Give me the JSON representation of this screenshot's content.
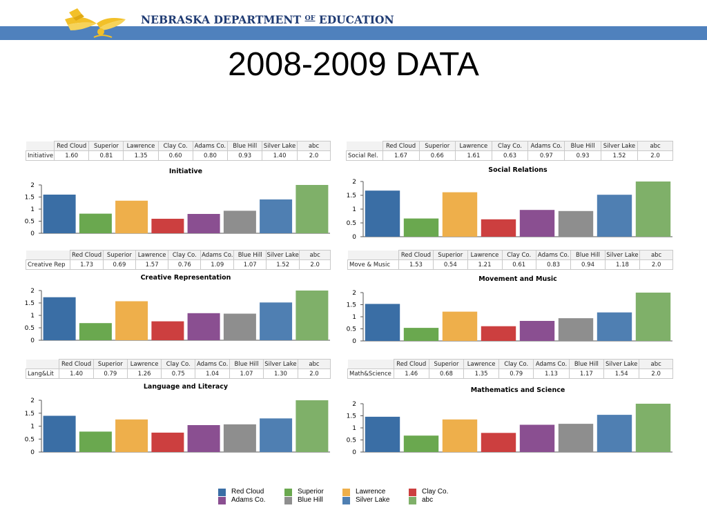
{
  "header": {
    "org_name_part1": "NEBRASKA DEPARTMENT ",
    "org_name_of": "OF",
    "org_name_part2": " EDUCATION",
    "band_color": "#4f81bd",
    "logo_icon": "book-torch-logo"
  },
  "slide_title": "2008-2009 DATA",
  "colors": {
    "Red Cloud": "#3a6ea5",
    "Superior": "#6aa84f",
    "Lawrence": "#eeaf4b",
    "Clay Co.": "#cc3f3f",
    "Adams Co.": "#8a4f91",
    "Blue Hill": "#8e8e8e",
    "Silver Lake": "#4f7fb2",
    "abc": "#7fb069"
  },
  "chart_data": [
    {
      "type": "bar",
      "row_label": "Initiative",
      "title": "Initiative",
      "categories": [
        "Red Cloud",
        "Superior",
        "Lawrence",
        "Clay Co.",
        "Adams Co.",
        "Blue Hill",
        "Silver Lake",
        "abc"
      ],
      "table_values": [
        "1.60",
        "0.81",
        "1.35",
        "0.60",
        "0.80",
        "0.93",
        "1.40",
        "2.0"
      ],
      "values": [
        1.6,
        0.81,
        1.35,
        0.6,
        0.8,
        0.93,
        1.4,
        2.0
      ],
      "yticks": [
        "0",
        "0.5",
        "1",
        "1.5",
        "2"
      ],
      "ylim": [
        0,
        2
      ]
    },
    {
      "type": "bar",
      "row_label": "Social Rel.",
      "title": "Social Relations",
      "categories": [
        "Red Cloud",
        "Superior",
        "Lawrence",
        "Clay Co.",
        "Adams Co.",
        "Blue Hill",
        "Silver Lake",
        "abc"
      ],
      "table_values": [
        "1.67",
        "0.66",
        "1.61",
        "0.63",
        "0.97",
        "0.93",
        "1.52",
        "2.0"
      ],
      "values": [
        1.67,
        0.66,
        1.61,
        0.63,
        0.97,
        0.93,
        1.52,
        2.0
      ],
      "yticks": [
        "0",
        "0.5",
        "1",
        "1.5",
        "2"
      ],
      "ylim": [
        0,
        2
      ]
    },
    {
      "type": "bar",
      "row_label": "Creative Rep",
      "title": "Creative Representation",
      "categories": [
        "Red Cloud",
        "Superior",
        "Lawrence",
        "Clay Co.",
        "Adams Co.",
        "Blue Hill",
        "Silver Lake",
        "abc"
      ],
      "table_values": [
        "1.73",
        "0.69",
        "1.57",
        "0.76",
        "1.09",
        "1.07",
        "1.52",
        "2.0"
      ],
      "values": [
        1.73,
        0.69,
        1.57,
        0.76,
        1.09,
        1.07,
        1.52,
        2.0
      ],
      "yticks": [
        "0",
        "0.5",
        "1",
        "1.5",
        "2"
      ],
      "ylim": [
        0,
        2
      ]
    },
    {
      "type": "bar",
      "row_label": "Move & Music",
      "title": "Movement and Music",
      "categories": [
        "Red Cloud",
        "Superior",
        "Lawrence",
        "Clay Co.",
        "Adams Co.",
        "Blue Hill",
        "Silver Lake",
        "abc"
      ],
      "table_values": [
        "1.53",
        "0.54",
        "1.21",
        "0.61",
        "0.83",
        "0.94",
        "1.18",
        "2.0"
      ],
      "values": [
        1.53,
        0.54,
        1.21,
        0.61,
        0.83,
        0.94,
        1.18,
        2.0
      ],
      "yticks": [
        "0",
        "0.5",
        "1",
        "1.5",
        "2"
      ],
      "ylim": [
        0,
        2
      ]
    },
    {
      "type": "bar",
      "row_label": "Lang&Lit",
      "title": "Language and Literacy",
      "categories": [
        "Red Cloud",
        "Superior",
        "Lawrence",
        "Clay Co.",
        "Adams Co.",
        "Blue Hill",
        "Silver Lake",
        "abc"
      ],
      "table_values": [
        "1.40",
        "0.79",
        "1.26",
        "0.75",
        "1.04",
        "1.07",
        "1.30",
        "2.0"
      ],
      "values": [
        1.4,
        0.79,
        1.26,
        0.75,
        1.04,
        1.07,
        1.3,
        2.0
      ],
      "yticks": [
        "0",
        "0.5",
        "1",
        "1.5",
        "2"
      ],
      "ylim": [
        0,
        2
      ]
    },
    {
      "type": "bar",
      "row_label": "Math&Science",
      "title": "Mathematics and Science",
      "categories": [
        "Red Cloud",
        "Superior",
        "Lawrence",
        "Clay Co.",
        "Adams Co.",
        "Blue Hill",
        "Silver Lake",
        "abc"
      ],
      "table_values": [
        "1.46",
        "0.68",
        "1.35",
        "0.79",
        "1.13",
        "1.17",
        "1.54",
        "2.0"
      ],
      "values": [
        1.46,
        0.68,
        1.35,
        0.79,
        1.13,
        1.17,
        1.54,
        2.0
      ],
      "yticks": [
        "0",
        "0.5",
        "1",
        "1.5",
        "2"
      ],
      "ylim": [
        0,
        2
      ]
    }
  ],
  "legend": [
    "Red Cloud",
    "Superior",
    "Lawrence",
    "Clay Co.",
    "Adams Co.",
    "Blue Hill",
    "Silver Lake",
    "abc"
  ]
}
